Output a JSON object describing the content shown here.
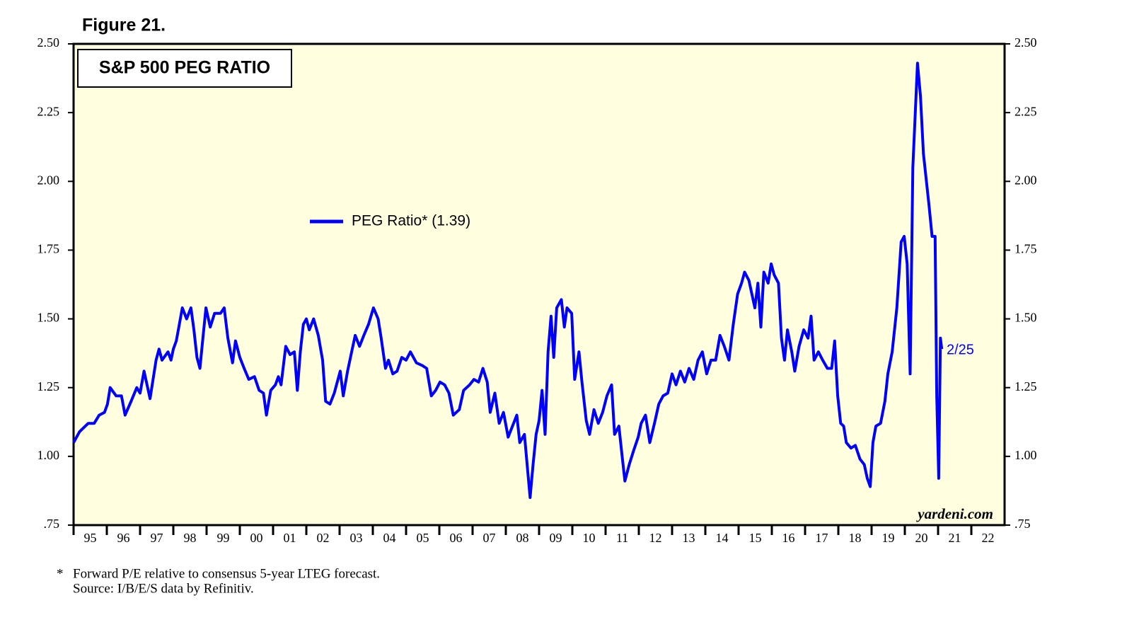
{
  "chart_data": {
    "type": "line",
    "figure_label": "Figure 21.",
    "title": "S&P 500 PEG RATIO",
    "watermark": "yardeni.com",
    "annotation": "2/25",
    "footnote_marker": "*",
    "footnotes": [
      "Forward P/E relative to consensus 5-year LTEG forecast.",
      "Source: I/B/E/S data by Refinitiv."
    ],
    "xlim": [
      1995,
      2023
    ],
    "ylim": [
      0.75,
      2.5
    ],
    "yticks": [
      {
        "value": 0.75,
        "label": ".75"
      },
      {
        "value": 1,
        "label": "1.00"
      },
      {
        "value": 1.25,
        "label": "1.25"
      },
      {
        "value": 1.5,
        "label": "1.50"
      },
      {
        "value": 1.75,
        "label": "1.75"
      },
      {
        "value": 2,
        "label": "2.00"
      },
      {
        "value": 2.25,
        "label": "2.25"
      },
      {
        "value": 2.5,
        "label": "2.50"
      }
    ],
    "xticks": [
      {
        "value": 1995,
        "label": "95"
      },
      {
        "value": 1996,
        "label": "96"
      },
      {
        "value": 1997,
        "label": "97"
      },
      {
        "value": 1998,
        "label": "98"
      },
      {
        "value": 1999,
        "label": "99"
      },
      {
        "value": 2000,
        "label": "00"
      },
      {
        "value": 2001,
        "label": "01"
      },
      {
        "value": 2002,
        "label": "02"
      },
      {
        "value": 2003,
        "label": "03"
      },
      {
        "value": 2004,
        "label": "04"
      },
      {
        "value": 2005,
        "label": "05"
      },
      {
        "value": 2006,
        "label": "06"
      },
      {
        "value": 2007,
        "label": "07"
      },
      {
        "value": 2008,
        "label": "08"
      },
      {
        "value": 2009,
        "label": "09"
      },
      {
        "value": 2010,
        "label": "10"
      },
      {
        "value": 2011,
        "label": "11"
      },
      {
        "value": 2012,
        "label": "12"
      },
      {
        "value": 2013,
        "label": "13"
      },
      {
        "value": 2014,
        "label": "14"
      },
      {
        "value": 2015,
        "label": "15"
      },
      {
        "value": 2016,
        "label": "16"
      },
      {
        "value": 2017,
        "label": "17"
      },
      {
        "value": 2018,
        "label": "18"
      },
      {
        "value": 2019,
        "label": "19"
      },
      {
        "value": 2020,
        "label": "20"
      },
      {
        "value": 2021,
        "label": "21"
      },
      {
        "value": 2022,
        "label": "22"
      }
    ],
    "x": [
      1995.0,
      1995.18,
      1995.44,
      1995.62,
      1995.77,
      1995.93,
      1996.02,
      1996.1,
      1996.28,
      1996.44,
      1996.55,
      1996.73,
      1996.9,
      1997.0,
      1997.12,
      1997.3,
      1997.48,
      1997.57,
      1997.66,
      1997.84,
      1997.93,
      1998.0,
      1998.09,
      1998.18,
      1998.27,
      1998.4,
      1998.53,
      1998.62,
      1998.71,
      1998.8,
      1998.89,
      1998.98,
      1999.11,
      1999.24,
      1999.42,
      1999.53,
      1999.64,
      1999.78,
      1999.87,
      2000.0,
      2000.13,
      2000.27,
      2000.44,
      2000.58,
      2000.71,
      2000.8,
      2000.93,
      2001.07,
      2001.16,
      2001.24,
      2001.38,
      2001.51,
      2001.64,
      2001.73,
      2001.82,
      2001.91,
      2002.0,
      2002.09,
      2002.22,
      2002.36,
      2002.49,
      2002.58,
      2002.71,
      2002.84,
      2003.02,
      2003.11,
      2003.24,
      2003.38,
      2003.47,
      2003.6,
      2003.73,
      2003.87,
      2004.02,
      2004.16,
      2004.25,
      2004.38,
      2004.47,
      2004.6,
      2004.73,
      2004.87,
      2005.0,
      2005.13,
      2005.31,
      2005.49,
      2005.62,
      2005.76,
      2005.89,
      2006.02,
      2006.16,
      2006.29,
      2006.42,
      2006.6,
      2006.73,
      2006.91,
      2007.04,
      2007.18,
      2007.31,
      2007.44,
      2007.53,
      2007.67,
      2007.8,
      2007.93,
      2008.07,
      2008.2,
      2008.33,
      2008.42,
      2008.56,
      2008.64,
      2008.73,
      2008.82,
      2008.91,
      2009.0,
      2009.09,
      2009.18,
      2009.27,
      2009.36,
      2009.44,
      2009.53,
      2009.67,
      2009.76,
      2009.84,
      2009.98,
      2010.07,
      2010.2,
      2010.29,
      2010.42,
      2010.52,
      2010.65,
      2010.78,
      2010.91,
      2011.04,
      2011.18,
      2011.27,
      2011.4,
      2011.49,
      2011.58,
      2011.71,
      2011.84,
      2011.98,
      2012.07,
      2012.2,
      2012.33,
      2012.47,
      2012.6,
      2012.73,
      2012.87,
      2013.0,
      2013.12,
      2013.25,
      2013.38,
      2013.51,
      2013.65,
      2013.78,
      2013.91,
      2014.04,
      2014.17,
      2014.31,
      2014.44,
      2014.57,
      2014.71,
      2014.84,
      2014.97,
      2015.09,
      2015.18,
      2015.31,
      2015.4,
      2015.49,
      2015.58,
      2015.67,
      2015.76,
      2015.89,
      2015.98,
      2016.07,
      2016.2,
      2016.29,
      2016.38,
      2016.47,
      2016.6,
      2016.69,
      2016.82,
      2016.96,
      2017.09,
      2017.18,
      2017.27,
      2017.4,
      2017.53,
      2017.67,
      2017.8,
      2017.89,
      2017.98,
      2018.07,
      2018.16,
      2018.24,
      2018.38,
      2018.51,
      2018.65,
      2018.78,
      2018.87,
      2018.96,
      2019.04,
      2019.13,
      2019.27,
      2019.4,
      2019.49,
      2019.62,
      2019.76,
      2019.89,
      2019.98,
      2020.07,
      2020.16,
      2020.24,
      2020.38,
      2020.47,
      2020.56,
      2020.64,
      2020.73,
      2020.82,
      2020.91,
      2020.96,
      2021.02,
      2021.07,
      2021.11
    ],
    "series": [
      {
        "name": "PEG Ratio* (1.39)",
        "color": "#0000ff",
        "values": [
          1.05,
          1.09,
          1.12,
          1.12,
          1.15,
          1.16,
          1.19,
          1.25,
          1.22,
          1.22,
          1.15,
          1.2,
          1.25,
          1.23,
          1.31,
          1.21,
          1.35,
          1.39,
          1.35,
          1.38,
          1.35,
          1.39,
          1.42,
          1.48,
          1.54,
          1.5,
          1.54,
          1.46,
          1.36,
          1.32,
          1.43,
          1.54,
          1.47,
          1.52,
          1.52,
          1.54,
          1.43,
          1.34,
          1.42,
          1.36,
          1.32,
          1.28,
          1.29,
          1.24,
          1.23,
          1.15,
          1.24,
          1.26,
          1.29,
          1.26,
          1.4,
          1.37,
          1.38,
          1.24,
          1.38,
          1.48,
          1.5,
          1.46,
          1.5,
          1.44,
          1.35,
          1.2,
          1.19,
          1.23,
          1.31,
          1.22,
          1.31,
          1.39,
          1.44,
          1.4,
          1.44,
          1.48,
          1.54,
          1.5,
          1.43,
          1.32,
          1.35,
          1.3,
          1.31,
          1.36,
          1.35,
          1.38,
          1.34,
          1.33,
          1.32,
          1.22,
          1.24,
          1.27,
          1.26,
          1.23,
          1.15,
          1.17,
          1.24,
          1.26,
          1.28,
          1.27,
          1.32,
          1.27,
          1.16,
          1.23,
          1.12,
          1.16,
          1.07,
          1.11,
          1.15,
          1.05,
          1.08,
          0.97,
          0.85,
          0.97,
          1.08,
          1.13,
          1.24,
          1.08,
          1.38,
          1.51,
          1.36,
          1.54,
          1.57,
          1.47,
          1.54,
          1.52,
          1.28,
          1.38,
          1.27,
          1.13,
          1.08,
          1.17,
          1.12,
          1.16,
          1.22,
          1.26,
          1.08,
          1.11,
          1.01,
          0.91,
          0.97,
          1.02,
          1.07,
          1.12,
          1.15,
          1.05,
          1.12,
          1.19,
          1.22,
          1.23,
          1.3,
          1.26,
          1.31,
          1.27,
          1.32,
          1.28,
          1.35,
          1.38,
          1.3,
          1.35,
          1.35,
          1.44,
          1.4,
          1.35,
          1.48,
          1.59,
          1.63,
          1.67,
          1.64,
          1.59,
          1.54,
          1.63,
          1.47,
          1.67,
          1.63,
          1.7,
          1.66,
          1.63,
          1.43,
          1.35,
          1.46,
          1.38,
          1.31,
          1.4,
          1.46,
          1.43,
          1.51,
          1.35,
          1.38,
          1.35,
          1.32,
          1.32,
          1.42,
          1.22,
          1.12,
          1.11,
          1.05,
          1.03,
          1.04,
          0.99,
          0.97,
          0.92,
          0.89,
          1.05,
          1.11,
          1.12,
          1.2,
          1.3,
          1.38,
          1.54,
          1.78,
          1.8,
          1.7,
          1.3,
          2.05,
          2.43,
          2.31,
          2.1,
          2.01,
          1.91,
          1.8,
          1.8,
          1.22,
          0.92,
          1.43,
          1.39
        ]
      }
    ]
  }
}
